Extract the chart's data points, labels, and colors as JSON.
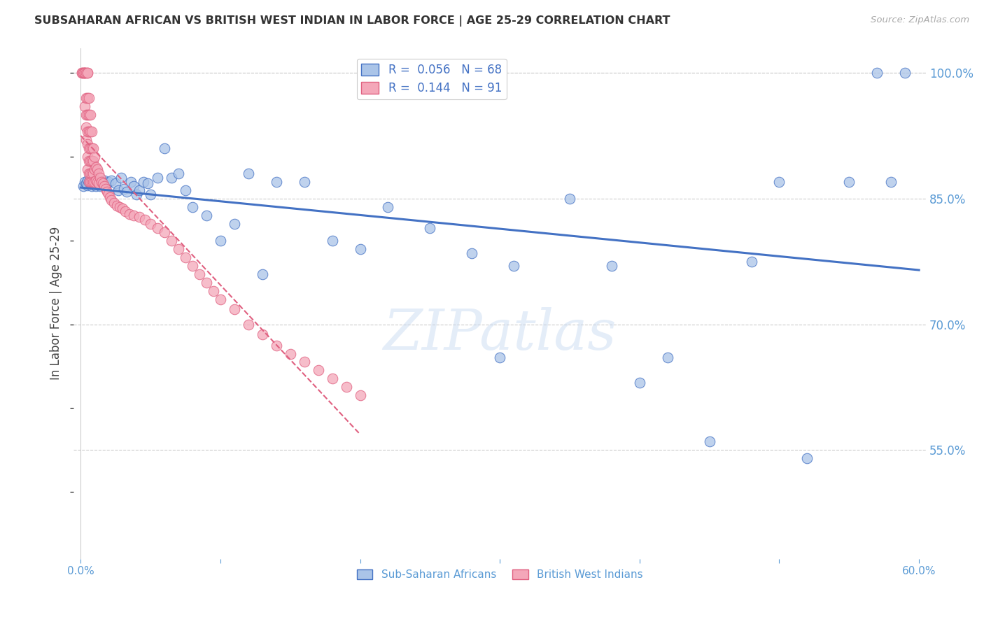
{
  "title": "SUBSAHARAN AFRICAN VS BRITISH WEST INDIAN IN LABOR FORCE | AGE 25-29 CORRELATION CHART",
  "source": "Source: ZipAtlas.com",
  "ylabel": "In Labor Force | Age 25-29",
  "xlim": [
    -0.005,
    0.605
  ],
  "ylim": [
    0.42,
    1.03
  ],
  "xticks": [
    0.0,
    0.1,
    0.2,
    0.3,
    0.4,
    0.5,
    0.6
  ],
  "xticklabels": [
    "0.0%",
    "",
    "",
    "",
    "",
    "",
    "60.0%"
  ],
  "yticks_right": [
    0.55,
    0.7,
    0.85,
    1.0
  ],
  "ytick_right_labels": [
    "55.0%",
    "70.0%",
    "85.0%",
    "100.0%"
  ],
  "blue_R": 0.056,
  "blue_N": 68,
  "pink_R": 0.144,
  "pink_N": 91,
  "blue_color": "#aac4e8",
  "pink_color": "#f4a7b9",
  "blue_edge_color": "#4472c4",
  "pink_edge_color": "#e06080",
  "blue_line_color": "#4472c4",
  "pink_line_color": "#e06080",
  "grid_color": "#cccccc",
  "title_color": "#333333",
  "axis_color": "#5b9bd5",
  "legend_label_blue": "Sub-Saharan Africans",
  "legend_label_pink": "British West Indians",
  "watermark": "ZIPatlas",
  "blue_scatter_x": [
    0.002,
    0.003,
    0.004,
    0.005,
    0.005,
    0.006,
    0.007,
    0.007,
    0.008,
    0.008,
    0.009,
    0.01,
    0.01,
    0.011,
    0.012,
    0.013,
    0.014,
    0.015,
    0.016,
    0.017,
    0.018,
    0.019,
    0.02,
    0.022,
    0.025,
    0.027,
    0.029,
    0.031,
    0.033,
    0.036,
    0.038,
    0.04,
    0.042,
    0.045,
    0.048,
    0.05,
    0.055,
    0.06,
    0.065,
    0.07,
    0.075,
    0.08,
    0.09,
    0.1,
    0.11,
    0.12,
    0.13,
    0.14,
    0.16,
    0.18,
    0.2,
    0.22,
    0.25,
    0.28,
    0.31,
    0.35,
    0.4,
    0.45,
    0.5,
    0.55,
    0.57,
    0.59,
    0.3,
    0.38,
    0.42,
    0.48,
    0.52,
    0.58
  ],
  "blue_scatter_y": [
    0.865,
    0.87,
    0.868,
    0.872,
    0.866,
    0.87,
    0.868,
    0.875,
    0.87,
    0.865,
    0.872,
    0.868,
    0.87,
    0.865,
    0.872,
    0.87,
    0.865,
    0.868,
    0.87,
    0.872,
    0.865,
    0.868,
    0.87,
    0.872,
    0.868,
    0.86,
    0.875,
    0.862,
    0.858,
    0.87,
    0.865,
    0.855,
    0.86,
    0.87,
    0.868,
    0.855,
    0.875,
    0.91,
    0.875,
    0.88,
    0.86,
    0.84,
    0.83,
    0.8,
    0.82,
    0.88,
    0.76,
    0.87,
    0.87,
    0.8,
    0.79,
    0.84,
    0.815,
    0.785,
    0.77,
    0.85,
    0.63,
    0.56,
    0.87,
    0.87,
    1.0,
    1.0,
    0.66,
    0.77,
    0.66,
    0.775,
    0.54,
    0.87
  ],
  "pink_scatter_x": [
    0.001,
    0.001,
    0.002,
    0.002,
    0.003,
    0.003,
    0.003,
    0.003,
    0.004,
    0.004,
    0.004,
    0.004,
    0.004,
    0.005,
    0.005,
    0.005,
    0.005,
    0.005,
    0.005,
    0.005,
    0.005,
    0.006,
    0.006,
    0.006,
    0.006,
    0.006,
    0.006,
    0.006,
    0.007,
    0.007,
    0.007,
    0.007,
    0.007,
    0.007,
    0.008,
    0.008,
    0.008,
    0.008,
    0.008,
    0.009,
    0.009,
    0.009,
    0.009,
    0.01,
    0.01,
    0.01,
    0.011,
    0.011,
    0.012,
    0.012,
    0.013,
    0.013,
    0.014,
    0.015,
    0.016,
    0.017,
    0.018,
    0.019,
    0.02,
    0.021,
    0.022,
    0.024,
    0.026,
    0.028,
    0.03,
    0.032,
    0.035,
    0.038,
    0.042,
    0.046,
    0.05,
    0.055,
    0.06,
    0.065,
    0.07,
    0.075,
    0.08,
    0.085,
    0.09,
    0.095,
    0.1,
    0.11,
    0.12,
    0.13,
    0.14,
    0.15,
    0.16,
    0.17,
    0.18,
    0.19,
    0.2
  ],
  "pink_scatter_y": [
    1.0,
    1.0,
    1.0,
    1.0,
    1.0,
    1.0,
    1.0,
    0.96,
    1.0,
    0.97,
    0.95,
    0.935,
    0.92,
    1.0,
    1.0,
    0.97,
    0.95,
    0.93,
    0.915,
    0.9,
    0.885,
    0.97,
    0.95,
    0.93,
    0.91,
    0.895,
    0.88,
    0.87,
    0.95,
    0.93,
    0.91,
    0.895,
    0.88,
    0.87,
    0.93,
    0.91,
    0.895,
    0.88,
    0.87,
    0.91,
    0.895,
    0.88,
    0.87,
    0.9,
    0.885,
    0.87,
    0.888,
    0.872,
    0.885,
    0.87,
    0.88,
    0.868,
    0.875,
    0.87,
    0.868,
    0.865,
    0.862,
    0.858,
    0.856,
    0.852,
    0.848,
    0.845,
    0.842,
    0.84,
    0.838,
    0.835,
    0.832,
    0.83,
    0.828,
    0.825,
    0.82,
    0.815,
    0.81,
    0.8,
    0.79,
    0.78,
    0.77,
    0.76,
    0.75,
    0.74,
    0.73,
    0.718,
    0.7,
    0.688,
    0.675,
    0.665,
    0.655,
    0.645,
    0.635,
    0.625,
    0.615
  ]
}
